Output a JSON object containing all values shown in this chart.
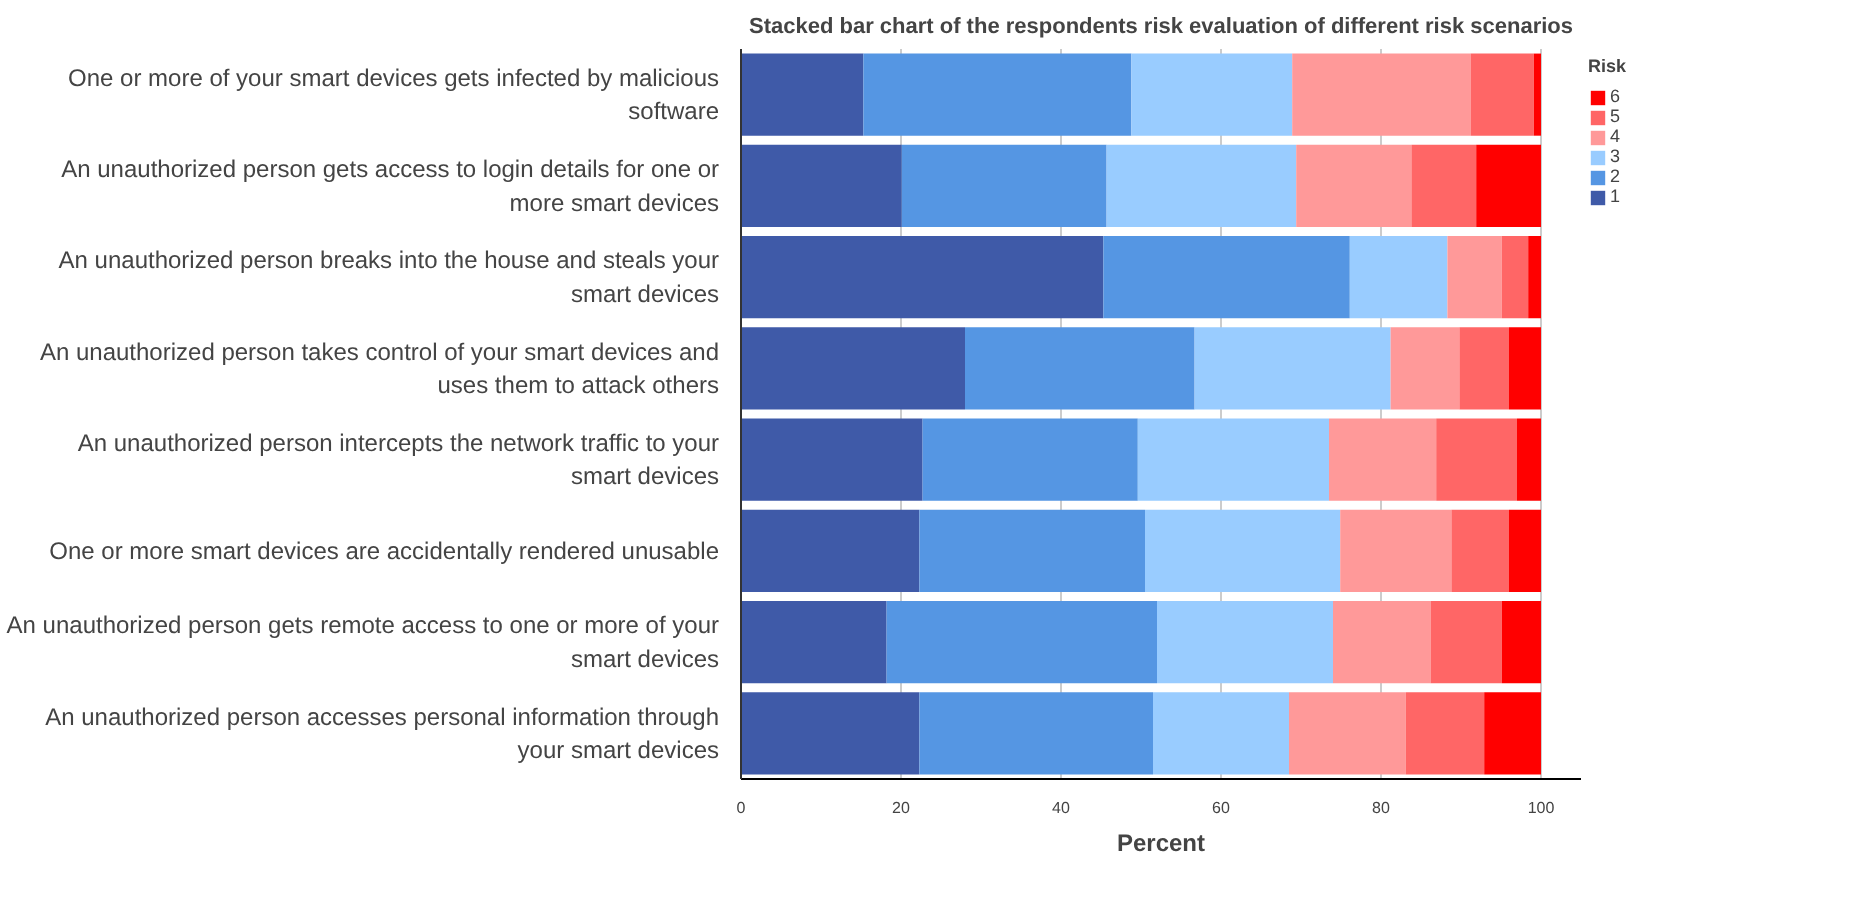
{
  "chart_data": {
    "type": "bar",
    "orientation": "horizontal",
    "stacked": true,
    "title": "Stacked bar chart of the respondents risk evaluation of different risk scenarios",
    "xlabel": "Percent",
    "legend_title": "Risk",
    "legend": "right",
    "grid": "x",
    "xlim": [
      0,
      105
    ],
    "xticks": [
      0,
      20,
      40,
      60,
      80,
      100
    ],
    "categories": [
      "One or more of your smart devices gets infected by malicious software",
      "An unauthorized person gets access to login details for one or more smart devices",
      "An unauthorized person breaks into the house and steals your smart devices",
      "An unauthorized person takes control of your smart devices and uses them to attack others",
      "An unauthorized person intercepts the network traffic to your smart devices",
      "One or more smart devices are accidentally rendered unusable",
      "An unauthorized person gets remote access to one or more of your smart devices",
      "An unauthorized person accesses personal information through your smart devices"
    ],
    "series": [
      {
        "name": "1",
        "color": "#3f5aa8",
        "values": [
          15.3,
          20.1,
          45.3,
          28.0,
          22.7,
          22.3,
          18.2,
          22.3
        ]
      },
      {
        "name": "2",
        "color": "#5596e3",
        "values": [
          33.5,
          25.6,
          30.8,
          28.7,
          26.9,
          28.2,
          33.8,
          29.2
        ]
      },
      {
        "name": "3",
        "color": "#99ccff",
        "values": [
          20.1,
          23.7,
          12.2,
          24.5,
          23.9,
          24.4,
          22.0,
          17.0
        ]
      },
      {
        "name": "4",
        "color": "#ff9999",
        "values": [
          22.3,
          14.4,
          6.8,
          8.6,
          13.4,
          13.9,
          12.2,
          14.6
        ]
      },
      {
        "name": "5",
        "color": "#ff6666",
        "values": [
          7.9,
          8.1,
          3.3,
          6.2,
          10.1,
          7.2,
          8.9,
          9.8
        ]
      },
      {
        "name": "6",
        "color": "#ff0000",
        "values": [
          0.9,
          8.1,
          1.6,
          4.0,
          3.0,
          4.0,
          4.9,
          7.1
        ]
      }
    ]
  }
}
